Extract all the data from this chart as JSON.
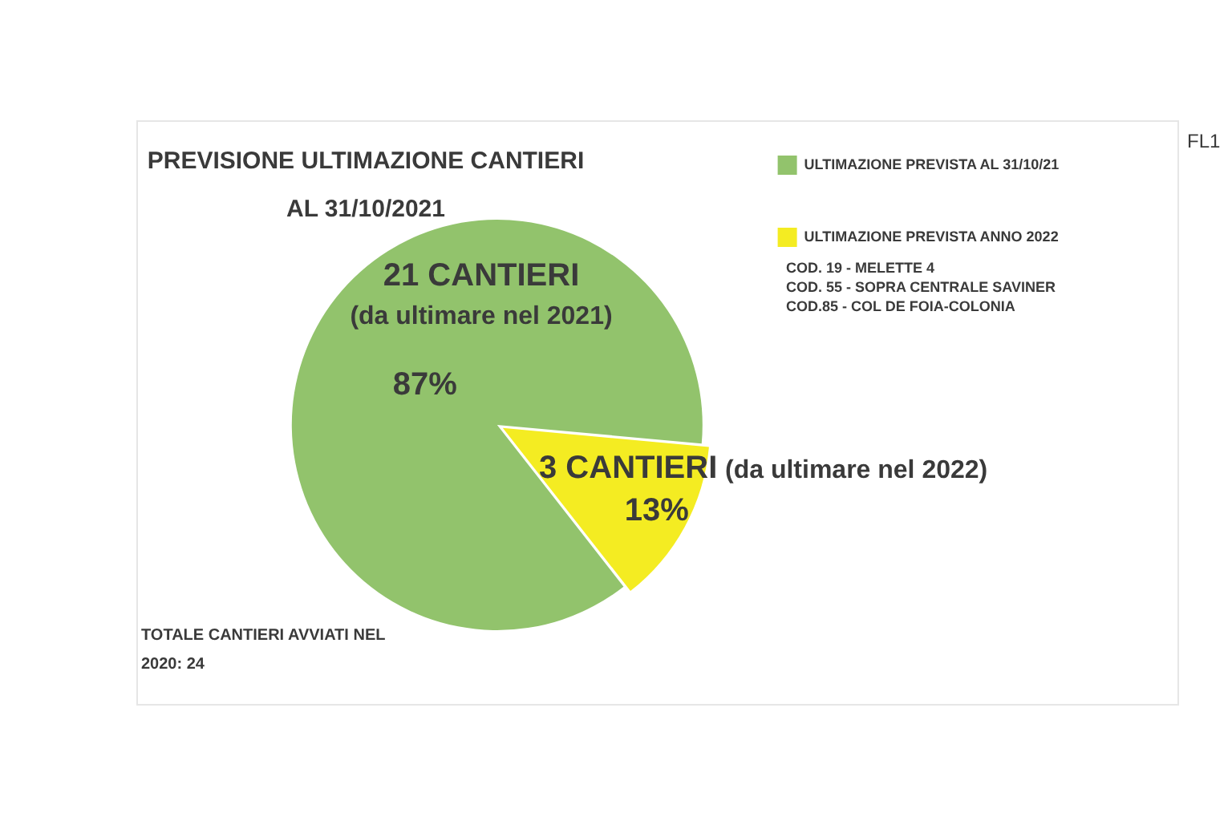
{
  "chart_data": {
    "type": "pie",
    "title": "PREVISIONE ULTIMAZIONE CANTIERI AL 31/10/2021",
    "categories": [
      "ULTIMAZIONE PREVISTA AL 31/10/21",
      "ULTIMAZIONE PREVISTA ANNO 2022"
    ],
    "values": [
      87,
      13
    ],
    "colors": [
      "#92c36c",
      "#f4ec22"
    ],
    "value_labels": [
      "87%",
      "13%"
    ],
    "legend": "top right",
    "annotations": [
      "21 CANTIERI",
      "(da ultimare nel 2021)",
      "3 CANTIERI",
      "(da ultimare nel 2022)",
      "COD. 19 - MELETTE 4",
      "COD. 55 - SOPRA CENTRALE SAVINER",
      "COD.85 - COL DE FOIA-COLONIA",
      "TOTALE CANTIERI AVVIATI NEL 2020: 24",
      "FL1"
    ]
  }
}
